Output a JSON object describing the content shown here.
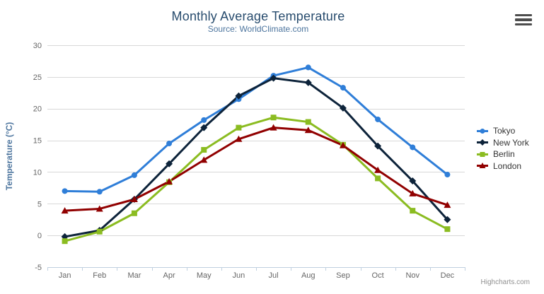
{
  "chart_data": {
    "type": "line",
    "title": "Monthly Average Temperature",
    "subtitle": "Source: WorldClimate.com",
    "categories": [
      "Jan",
      "Feb",
      "Mar",
      "Apr",
      "May",
      "Jun",
      "Jul",
      "Aug",
      "Sep",
      "Oct",
      "Nov",
      "Dec"
    ],
    "xlabel": "",
    "ylabel": "Temperature (°C)",
    "ylim": [
      -5,
      30
    ],
    "ytick_step": 5,
    "yticks": [
      "-5",
      "0",
      "5",
      "10",
      "15",
      "20",
      "25",
      "30"
    ],
    "grid": true,
    "legend_position": "right",
    "series": [
      {
        "name": "Tokyo",
        "color": "#2f7ed8",
        "marker": "circle",
        "values": [
          7.0,
          6.9,
          9.5,
          14.5,
          18.2,
          21.5,
          25.2,
          26.5,
          23.3,
          18.3,
          13.9,
          9.6
        ]
      },
      {
        "name": "New York",
        "color": "#0d233a",
        "marker": "diamond",
        "values": [
          -0.2,
          0.8,
          5.7,
          11.3,
          17.0,
          22.0,
          24.8,
          24.1,
          20.1,
          14.1,
          8.6,
          2.5
        ]
      },
      {
        "name": "Berlin",
        "color": "#8bbc21",
        "marker": "square",
        "values": [
          -0.9,
          0.6,
          3.5,
          8.4,
          13.5,
          17.0,
          18.6,
          17.9,
          14.3,
          9.0,
          3.9,
          1.0
        ]
      },
      {
        "name": "London",
        "color": "#910000",
        "marker": "triangle",
        "values": [
          3.9,
          4.2,
          5.7,
          8.5,
          11.9,
          15.2,
          17.0,
          16.6,
          14.2,
          10.3,
          6.6,
          4.8
        ]
      }
    ],
    "credits": "Highcharts.com",
    "colors": {
      "grid_line": "#d8d8d8",
      "axis_line": "#c0d0e0",
      "tick_label": "#666666",
      "title": "#274b6d",
      "subtitle": "#4d759e"
    }
  },
  "icons": {
    "export_menu": "hamburger-icon"
  }
}
